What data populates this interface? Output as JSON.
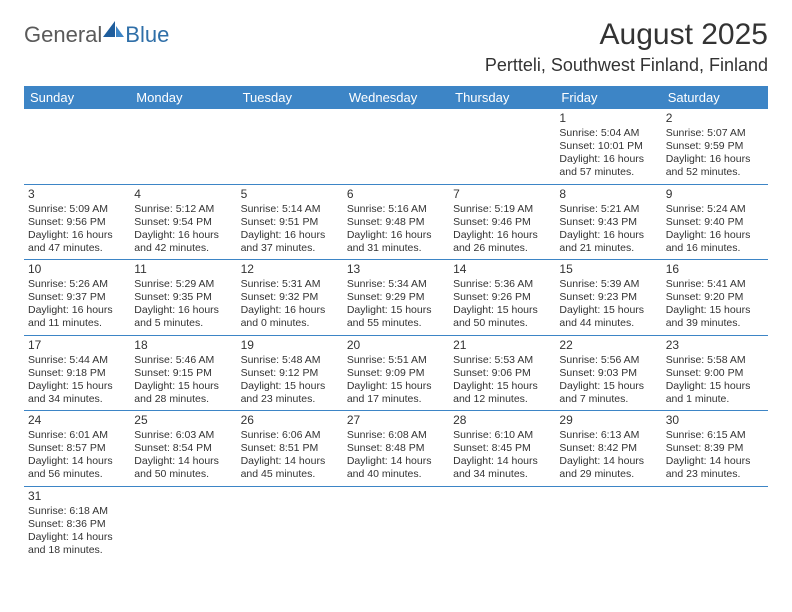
{
  "logo": {
    "general": "General",
    "blue": "Blue"
  },
  "title": "August 2025",
  "location": "Pertteli, Southwest Finland, Finland",
  "colors": {
    "header_bg": "#3d85c6",
    "header_fg": "#ffffff",
    "rule": "#3d85c6",
    "text": "#333333",
    "logo_gray": "#5a5a5a",
    "logo_blue": "#2f6fa8"
  },
  "daysOfWeek": [
    "Sunday",
    "Monday",
    "Tuesday",
    "Wednesday",
    "Thursday",
    "Friday",
    "Saturday"
  ],
  "weeks": [
    [
      null,
      null,
      null,
      null,
      null,
      {
        "n": "1",
        "sr": "Sunrise: 5:04 AM",
        "ss": "Sunset: 10:01 PM",
        "d1": "Daylight: 16 hours",
        "d2": "and 57 minutes."
      },
      {
        "n": "2",
        "sr": "Sunrise: 5:07 AM",
        "ss": "Sunset: 9:59 PM",
        "d1": "Daylight: 16 hours",
        "d2": "and 52 minutes."
      }
    ],
    [
      {
        "n": "3",
        "sr": "Sunrise: 5:09 AM",
        "ss": "Sunset: 9:56 PM",
        "d1": "Daylight: 16 hours",
        "d2": "and 47 minutes."
      },
      {
        "n": "4",
        "sr": "Sunrise: 5:12 AM",
        "ss": "Sunset: 9:54 PM",
        "d1": "Daylight: 16 hours",
        "d2": "and 42 minutes."
      },
      {
        "n": "5",
        "sr": "Sunrise: 5:14 AM",
        "ss": "Sunset: 9:51 PM",
        "d1": "Daylight: 16 hours",
        "d2": "and 37 minutes."
      },
      {
        "n": "6",
        "sr": "Sunrise: 5:16 AM",
        "ss": "Sunset: 9:48 PM",
        "d1": "Daylight: 16 hours",
        "d2": "and 31 minutes."
      },
      {
        "n": "7",
        "sr": "Sunrise: 5:19 AM",
        "ss": "Sunset: 9:46 PM",
        "d1": "Daylight: 16 hours",
        "d2": "and 26 minutes."
      },
      {
        "n": "8",
        "sr": "Sunrise: 5:21 AM",
        "ss": "Sunset: 9:43 PM",
        "d1": "Daylight: 16 hours",
        "d2": "and 21 minutes."
      },
      {
        "n": "9",
        "sr": "Sunrise: 5:24 AM",
        "ss": "Sunset: 9:40 PM",
        "d1": "Daylight: 16 hours",
        "d2": "and 16 minutes."
      }
    ],
    [
      {
        "n": "10",
        "sr": "Sunrise: 5:26 AM",
        "ss": "Sunset: 9:37 PM",
        "d1": "Daylight: 16 hours",
        "d2": "and 11 minutes."
      },
      {
        "n": "11",
        "sr": "Sunrise: 5:29 AM",
        "ss": "Sunset: 9:35 PM",
        "d1": "Daylight: 16 hours",
        "d2": "and 5 minutes."
      },
      {
        "n": "12",
        "sr": "Sunrise: 5:31 AM",
        "ss": "Sunset: 9:32 PM",
        "d1": "Daylight: 16 hours",
        "d2": "and 0 minutes."
      },
      {
        "n": "13",
        "sr": "Sunrise: 5:34 AM",
        "ss": "Sunset: 9:29 PM",
        "d1": "Daylight: 15 hours",
        "d2": "and 55 minutes."
      },
      {
        "n": "14",
        "sr": "Sunrise: 5:36 AM",
        "ss": "Sunset: 9:26 PM",
        "d1": "Daylight: 15 hours",
        "d2": "and 50 minutes."
      },
      {
        "n": "15",
        "sr": "Sunrise: 5:39 AM",
        "ss": "Sunset: 9:23 PM",
        "d1": "Daylight: 15 hours",
        "d2": "and 44 minutes."
      },
      {
        "n": "16",
        "sr": "Sunrise: 5:41 AM",
        "ss": "Sunset: 9:20 PM",
        "d1": "Daylight: 15 hours",
        "d2": "and 39 minutes."
      }
    ],
    [
      {
        "n": "17",
        "sr": "Sunrise: 5:44 AM",
        "ss": "Sunset: 9:18 PM",
        "d1": "Daylight: 15 hours",
        "d2": "and 34 minutes."
      },
      {
        "n": "18",
        "sr": "Sunrise: 5:46 AM",
        "ss": "Sunset: 9:15 PM",
        "d1": "Daylight: 15 hours",
        "d2": "and 28 minutes."
      },
      {
        "n": "19",
        "sr": "Sunrise: 5:48 AM",
        "ss": "Sunset: 9:12 PM",
        "d1": "Daylight: 15 hours",
        "d2": "and 23 minutes."
      },
      {
        "n": "20",
        "sr": "Sunrise: 5:51 AM",
        "ss": "Sunset: 9:09 PM",
        "d1": "Daylight: 15 hours",
        "d2": "and 17 minutes."
      },
      {
        "n": "21",
        "sr": "Sunrise: 5:53 AM",
        "ss": "Sunset: 9:06 PM",
        "d1": "Daylight: 15 hours",
        "d2": "and 12 minutes."
      },
      {
        "n": "22",
        "sr": "Sunrise: 5:56 AM",
        "ss": "Sunset: 9:03 PM",
        "d1": "Daylight: 15 hours",
        "d2": "and 7 minutes."
      },
      {
        "n": "23",
        "sr": "Sunrise: 5:58 AM",
        "ss": "Sunset: 9:00 PM",
        "d1": "Daylight: 15 hours",
        "d2": "and 1 minute."
      }
    ],
    [
      {
        "n": "24",
        "sr": "Sunrise: 6:01 AM",
        "ss": "Sunset: 8:57 PM",
        "d1": "Daylight: 14 hours",
        "d2": "and 56 minutes."
      },
      {
        "n": "25",
        "sr": "Sunrise: 6:03 AM",
        "ss": "Sunset: 8:54 PM",
        "d1": "Daylight: 14 hours",
        "d2": "and 50 minutes."
      },
      {
        "n": "26",
        "sr": "Sunrise: 6:06 AM",
        "ss": "Sunset: 8:51 PM",
        "d1": "Daylight: 14 hours",
        "d2": "and 45 minutes."
      },
      {
        "n": "27",
        "sr": "Sunrise: 6:08 AM",
        "ss": "Sunset: 8:48 PM",
        "d1": "Daylight: 14 hours",
        "d2": "and 40 minutes."
      },
      {
        "n": "28",
        "sr": "Sunrise: 6:10 AM",
        "ss": "Sunset: 8:45 PM",
        "d1": "Daylight: 14 hours",
        "d2": "and 34 minutes."
      },
      {
        "n": "29",
        "sr": "Sunrise: 6:13 AM",
        "ss": "Sunset: 8:42 PM",
        "d1": "Daylight: 14 hours",
        "d2": "and 29 minutes."
      },
      {
        "n": "30",
        "sr": "Sunrise: 6:15 AM",
        "ss": "Sunset: 8:39 PM",
        "d1": "Daylight: 14 hours",
        "d2": "and 23 minutes."
      }
    ],
    [
      {
        "n": "31",
        "sr": "Sunrise: 6:18 AM",
        "ss": "Sunset: 8:36 PM",
        "d1": "Daylight: 14 hours",
        "d2": "and 18 minutes."
      },
      null,
      null,
      null,
      null,
      null,
      null
    ]
  ]
}
